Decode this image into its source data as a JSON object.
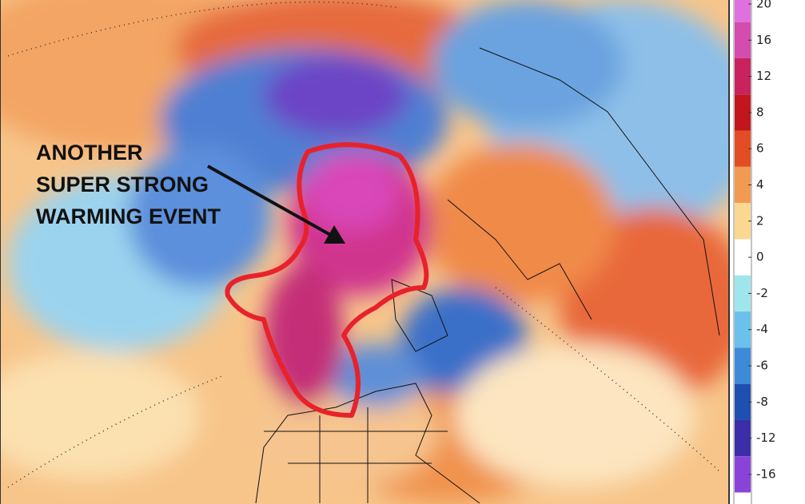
{
  "annotation": {
    "lines": [
      "ANOTHER",
      "SUPER STRONG",
      "WARMING EVENT"
    ]
  },
  "colorbar": {
    "levels": [
      20,
      16,
      12,
      8,
      6,
      4,
      2,
      0,
      -2,
      -4,
      -6,
      -8,
      -12,
      -16
    ],
    "colors": [
      "#e070e0",
      "#d34cae",
      "#c8235e",
      "#c2161c",
      "#e24d25",
      "#f39a52",
      "#fbd891",
      "#ffffff",
      "#9fe6ec",
      "#6cc0ec",
      "#3f8ad8",
      "#1f4fb0",
      "#3b2ea8",
      "#8a43d8"
    ]
  }
}
